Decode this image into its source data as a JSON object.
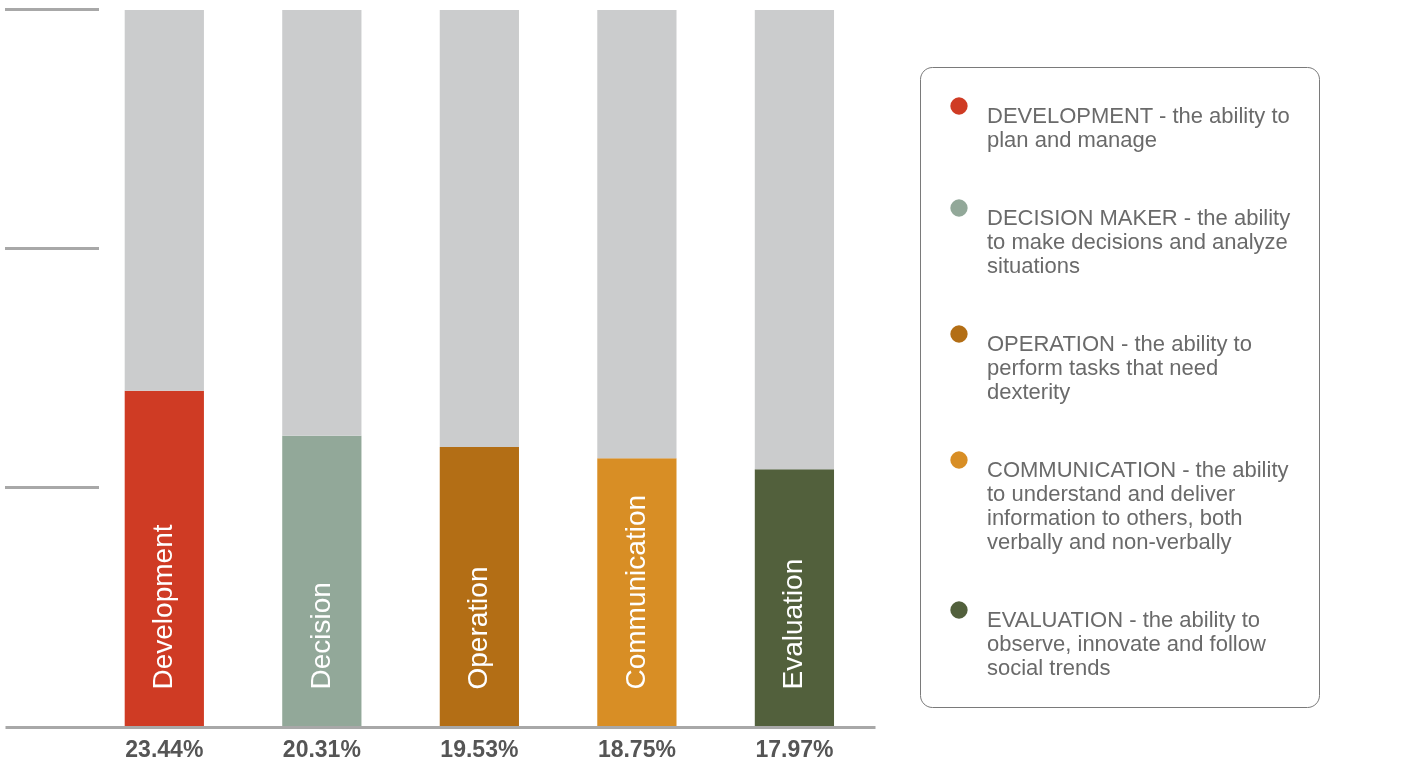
{
  "chart_data": {
    "type": "bar",
    "categories": [
      "Development",
      "Decision",
      "Operation",
      "Communication",
      "Evaluation"
    ],
    "series": [
      {
        "name": "DEVELOPMENT - the ability to plan and manage",
        "color": "#cf3b24",
        "values": [
          23.44,
          null,
          null,
          null,
          null
        ],
        "value_labels": [
          "23.44%",
          null,
          null,
          null,
          null
        ]
      },
      {
        "name": "DECISION MAKER - the ability to make decisions and analyze situations",
        "color": "#92a899",
        "values": [
          null,
          20.31,
          null,
          null,
          null
        ],
        "value_labels": [
          null,
          "20.31%",
          null,
          null,
          null
        ]
      },
      {
        "name": "OPERATION - the ability to perform tasks that need dexterity",
        "color": "#b36e15",
        "values": [
          null,
          null,
          19.53,
          null,
          null
        ],
        "value_labels": [
          null,
          null,
          "19.53%",
          null,
          null
        ]
      },
      {
        "name": "COMMUNICATION - the ability to understand and deliver information to others, both verbally and non-verbally",
        "color": "#d88e25",
        "values": [
          null,
          null,
          null,
          18.75,
          null
        ],
        "value_labels": [
          null,
          null,
          null,
          "18.75%",
          null
        ]
      },
      {
        "name": "EVALUATION - the ability to observe, innovate and follow social trends",
        "color": "#52603c",
        "values": [
          null,
          null,
          null,
          null,
          17.97
        ],
        "value_labels": [
          null,
          null,
          null,
          null,
          "17.97%"
        ]
      },
      {
        "color": "#cbcccd",
        "values": [
          26.56,
          29.69,
          30.47,
          31.25,
          32.03
        ]
      }
    ],
    "stacked": true,
    "ylim": [
      0,
      50
    ],
    "tick_labels": "x",
    "legend": "right"
  }
}
